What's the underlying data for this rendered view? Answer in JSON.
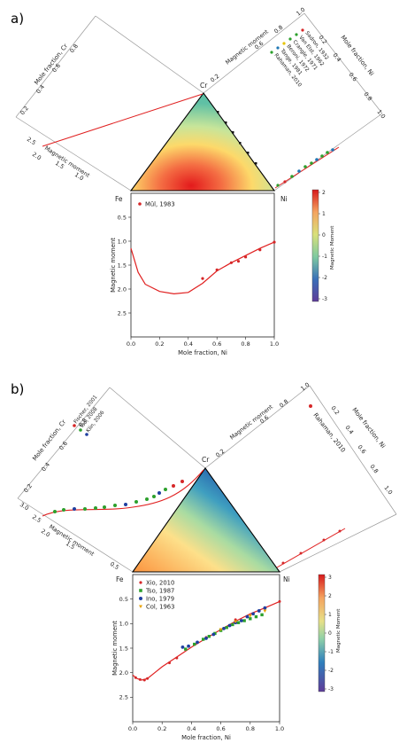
{
  "figure": {
    "panel_labels": [
      "a)",
      "b)"
    ],
    "apex_labels": {
      "fe": "Fe",
      "cr": "Cr",
      "ni": "Ni"
    }
  },
  "chart_data": [
    {
      "panel": "a)",
      "type": "scatter",
      "description_free": true,
      "ternary": {
        "left_axis_label": "Mole fraction, Cr",
        "right_axis_label": "Mole fraction, Ni",
        "left_moment_label": "Magnetic moment",
        "right_moment_label": "Magnetic moment",
        "left_axis_ticks": [
          "0.2",
          "0.4",
          "0.6",
          "0.8"
        ],
        "left_moment_ticks": [
          "0.5",
          "1.0",
          "1.5",
          "2.0",
          "2.5"
        ],
        "right_axis_ticks": [
          "0.2",
          "0.4",
          "0.6",
          "0.8",
          "1.0"
        ],
        "right_moment_ticks": [
          "0.2",
          "0.4",
          "0.6",
          "0.8",
          "1.0"
        ],
        "legend": [
          "Sadron, 1932",
          "Van Elst, 1962",
          "Crangle, 1971",
          "Beroni, 1972",
          "Tange, 1981",
          "Rahaman, 2010"
        ],
        "legend_colors": [
          "#d62728",
          "#2ca02c",
          "#2ca02c",
          "#e5c400",
          "#1f77b4",
          "#2ca02c"
        ],
        "colorbar": {
          "label": "Magnetic Moment",
          "ticks": [
            "2",
            "1",
            "0",
            "-1",
            "-2",
            "-3"
          ],
          "max": 2,
          "min": -3
        }
      },
      "binary": {
        "xlabel": "Mole fraction, Ni",
        "ylabel": "Magnetic moment",
        "xlim": [
          0.0,
          1.0
        ],
        "ylim": [
          0.0,
          3.0
        ],
        "y_inverted": true,
        "x_ticks": [
          "0.0",
          "0.2",
          "0.4",
          "0.6",
          "0.8",
          "1.0"
        ],
        "y_ticks": [
          "0.5",
          "1.0",
          "1.5",
          "2.0",
          "2.5"
        ],
        "legend": "Mül, 1983",
        "points": [
          [
            0.5,
            1.78
          ],
          [
            0.6,
            1.6
          ],
          [
            0.7,
            1.45
          ],
          [
            0.75,
            1.42
          ],
          [
            0.8,
            1.33
          ],
          [
            0.9,
            1.18
          ],
          [
            1.0,
            1.02
          ]
        ],
        "curve": [
          [
            0.0,
            1.15
          ],
          [
            0.05,
            1.65
          ],
          [
            0.1,
            1.9
          ],
          [
            0.2,
            2.05
          ],
          [
            0.3,
            2.1
          ],
          [
            0.4,
            2.07
          ],
          [
            0.5,
            1.88
          ],
          [
            0.6,
            1.62
          ],
          [
            0.7,
            1.45
          ],
          [
            0.8,
            1.3
          ],
          [
            0.9,
            1.15
          ],
          [
            1.0,
            1.02
          ]
        ]
      }
    },
    {
      "panel": "b)",
      "type": "scatter",
      "ternary": {
        "left_axis_label": "Mole fraction, Cr",
        "right_axis_label": "Mole fraction, Ni",
        "left_moment_label": "Magnetic moment",
        "right_moment_label": "Magnetic moment",
        "left_axis_ticks": [
          "0.2",
          "0.4",
          "0.6",
          "0.8"
        ],
        "left_moment_ticks": [
          "0.5",
          "1.0",
          "1.5",
          "2.0",
          "2.5",
          "3.0"
        ],
        "right_axis_ticks": [
          "0.2",
          "0.4",
          "0.6",
          "0.8",
          "1.0"
        ],
        "right_moment_ticks": [
          "0.2",
          "0.4",
          "0.6",
          "0.8",
          "1.0"
        ],
        "left_legend": [
          "Fischer, 2001",
          "Tso, 2008",
          "Klin, 2006"
        ],
        "left_legend_colors": [
          "#d62728",
          "#2ca02c",
          "#1f3fa0"
        ],
        "right_legend": "Rahaman, 2010",
        "colorbar": {
          "label": "Magnetic Moment",
          "ticks": [
            "3",
            "2",
            "1",
            "0",
            "-1",
            "-2",
            "-3"
          ],
          "max": 3,
          "min": -3
        }
      },
      "binary": {
        "xlabel": "Mole fraction, Ni",
        "ylabel": "Magnetic moment",
        "xlim": [
          0.0,
          1.0
        ],
        "ylim": [
          0.0,
          3.0
        ],
        "y_inverted": true,
        "x_ticks": [
          "0.0",
          "0.2",
          "0.4",
          "0.6",
          "0.8",
          "1.0"
        ],
        "y_ticks": [
          "0.5",
          "1.0",
          "1.5",
          "2.0",
          "2.5"
        ],
        "legend": [
          "Xio, 2010",
          "Tso, 1987",
          "Ino, 1979",
          "Col, 1963"
        ],
        "legend_colors": [
          "#d62728",
          "#2ca02c",
          "#1f3fa0",
          "#e8a000"
        ],
        "curve": [
          [
            0.0,
            2.05
          ],
          [
            0.03,
            2.12
          ],
          [
            0.06,
            2.15
          ],
          [
            0.1,
            2.12
          ],
          [
            0.15,
            2.0
          ],
          [
            0.2,
            1.88
          ],
          [
            0.3,
            1.68
          ],
          [
            0.4,
            1.48
          ],
          [
            0.5,
            1.3
          ],
          [
            0.6,
            1.12
          ],
          [
            0.7,
            0.95
          ],
          [
            0.8,
            0.8
          ],
          [
            0.9,
            0.68
          ],
          [
            1.0,
            0.55
          ]
        ],
        "series": [
          {
            "name": "Xio, 2010",
            "points": [
              [
                0.02,
                2.1
              ],
              [
                0.05,
                2.14
              ],
              [
                0.08,
                2.15
              ],
              [
                0.1,
                2.12
              ],
              [
                0.25,
                1.8
              ],
              [
                0.3,
                1.7
              ],
              [
                0.5,
                1.28
              ],
              [
                0.7,
                0.92
              ],
              [
                1.0,
                0.55
              ]
            ]
          },
          {
            "name": "Tso, 1987",
            "points": [
              [
                0.36,
                1.52
              ],
              [
                0.42,
                1.42
              ],
              [
                0.48,
                1.32
              ],
              [
                0.52,
                1.26
              ],
              [
                0.56,
                1.2
              ],
              [
                0.6,
                1.14
              ],
              [
                0.64,
                1.08
              ],
              [
                0.68,
                1.02
              ],
              [
                0.72,
                0.98
              ],
              [
                0.76,
                0.94
              ],
              [
                0.8,
                0.9
              ],
              [
                0.84,
                0.86
              ],
              [
                0.88,
                0.82
              ]
            ]
          },
          {
            "name": "Ino, 1979",
            "points": [
              [
                0.34,
                1.48
              ],
              [
                0.38,
                1.46
              ],
              [
                0.44,
                1.38
              ],
              [
                0.5,
                1.3
              ],
              [
                0.55,
                1.22
              ],
              [
                0.62,
                1.1
              ],
              [
                0.66,
                1.04
              ],
              [
                0.7,
                0.98
              ],
              [
                0.74,
                0.94
              ],
              [
                0.78,
                0.86
              ],
              [
                0.82,
                0.8
              ],
              [
                0.86,
                0.74
              ],
              [
                0.9,
                0.68
              ]
            ]
          },
          {
            "name": "Col, 1963",
            "points": [
              [
                0.6,
                1.12
              ],
              [
                0.7,
                0.96
              ],
              [
                0.8,
                0.84
              ],
              [
                0.9,
                0.74
              ]
            ]
          }
        ]
      }
    }
  ]
}
